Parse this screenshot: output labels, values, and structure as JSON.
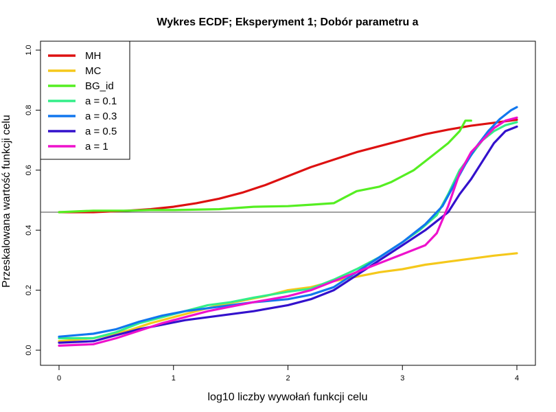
{
  "chart_data": {
    "type": "line",
    "title": "Wykres ECDF; Eksperyment 1; Dobór parametru a",
    "xlabel": "log10 liczby wywołań funkcji celu",
    "ylabel": "Przeskalowana wartość funkcji celu",
    "xlim": [
      0,
      4
    ],
    "ylim": [
      0,
      1
    ],
    "x_ticks": [
      "0",
      "1",
      "2",
      "3",
      "4"
    ],
    "y_ticks": [
      "0.0",
      "0.2",
      "0.4",
      "0.6",
      "0.8",
      "1.0"
    ],
    "hline": 0.46,
    "legend_position": "top-left",
    "grid": false,
    "series": [
      {
        "name": "MH",
        "color": "#dd1111",
        "points": [
          [
            0,
            0.46
          ],
          [
            0.3,
            0.46
          ],
          [
            0.6,
            0.465
          ],
          [
            0.8,
            0.47
          ],
          [
            1.0,
            0.478
          ],
          [
            1.2,
            0.49
          ],
          [
            1.4,
            0.505
          ],
          [
            1.6,
            0.525
          ],
          [
            1.8,
            0.55
          ],
          [
            2.0,
            0.58
          ],
          [
            2.2,
            0.61
          ],
          [
            2.4,
            0.635
          ],
          [
            2.6,
            0.66
          ],
          [
            2.8,
            0.68
          ],
          [
            3.0,
            0.7
          ],
          [
            3.2,
            0.72
          ],
          [
            3.4,
            0.735
          ],
          [
            3.6,
            0.748
          ],
          [
            3.8,
            0.758
          ],
          [
            4.0,
            0.768
          ]
        ]
      },
      {
        "name": "MC",
        "color": "#f5c81b",
        "points": [
          [
            0,
            0.03
          ],
          [
            0.3,
            0.04
          ],
          [
            0.6,
            0.065
          ],
          [
            0.8,
            0.09
          ],
          [
            1.0,
            0.11
          ],
          [
            1.2,
            0.13
          ],
          [
            1.4,
            0.15
          ],
          [
            1.6,
            0.165
          ],
          [
            1.8,
            0.18
          ],
          [
            2.0,
            0.2
          ],
          [
            2.2,
            0.21
          ],
          [
            2.4,
            0.23
          ],
          [
            2.6,
            0.245
          ],
          [
            2.8,
            0.26
          ],
          [
            3.0,
            0.27
          ],
          [
            3.2,
            0.285
          ],
          [
            3.4,
            0.295
          ],
          [
            3.6,
            0.305
          ],
          [
            3.8,
            0.315
          ],
          [
            4.0,
            0.323
          ]
        ]
      },
      {
        "name": "BG_id",
        "color": "#55ee22",
        "points": [
          [
            0,
            0.46
          ],
          [
            0.3,
            0.465
          ],
          [
            0.6,
            0.465
          ],
          [
            0.8,
            0.467
          ],
          [
            1.0,
            0.467
          ],
          [
            1.4,
            0.47
          ],
          [
            1.7,
            0.478
          ],
          [
            2.0,
            0.48
          ],
          [
            2.2,
            0.485
          ],
          [
            2.4,
            0.49
          ],
          [
            2.5,
            0.51
          ],
          [
            2.6,
            0.53
          ],
          [
            2.8,
            0.545
          ],
          [
            2.9,
            0.56
          ],
          [
            3.0,
            0.58
          ],
          [
            3.1,
            0.6
          ],
          [
            3.2,
            0.63
          ],
          [
            3.3,
            0.66
          ],
          [
            3.4,
            0.69
          ],
          [
            3.5,
            0.73
          ],
          [
            3.55,
            0.765
          ],
          [
            3.6,
            0.765
          ]
        ]
      },
      {
        "name": "a = 0.1",
        "color": "#33ee88",
        "points": [
          [
            0,
            0.04
          ],
          [
            0.3,
            0.04
          ],
          [
            0.5,
            0.06
          ],
          [
            0.7,
            0.09
          ],
          [
            0.9,
            0.11
          ],
          [
            1.1,
            0.13
          ],
          [
            1.3,
            0.15
          ],
          [
            1.5,
            0.16
          ],
          [
            1.7,
            0.175
          ],
          [
            2.0,
            0.195
          ],
          [
            2.2,
            0.205
          ],
          [
            2.4,
            0.235
          ],
          [
            2.6,
            0.27
          ],
          [
            2.8,
            0.31
          ],
          [
            3.0,
            0.36
          ],
          [
            3.15,
            0.4
          ],
          [
            3.3,
            0.45
          ],
          [
            3.4,
            0.52
          ],
          [
            3.5,
            0.6
          ],
          [
            3.6,
            0.65
          ],
          [
            3.7,
            0.7
          ],
          [
            3.8,
            0.73
          ],
          [
            3.9,
            0.75
          ],
          [
            4.0,
            0.76
          ]
        ]
      },
      {
        "name": "a = 0.3",
        "color": "#1177ee",
        "points": [
          [
            0,
            0.045
          ],
          [
            0.3,
            0.055
          ],
          [
            0.5,
            0.07
          ],
          [
            0.7,
            0.095
          ],
          [
            0.9,
            0.115
          ],
          [
            1.1,
            0.13
          ],
          [
            1.3,
            0.14
          ],
          [
            1.5,
            0.15
          ],
          [
            1.7,
            0.16
          ],
          [
            2.0,
            0.17
          ],
          [
            2.2,
            0.185
          ],
          [
            2.4,
            0.21
          ],
          [
            2.6,
            0.26
          ],
          [
            2.8,
            0.31
          ],
          [
            3.0,
            0.36
          ],
          [
            3.2,
            0.42
          ],
          [
            3.35,
            0.48
          ],
          [
            3.45,
            0.55
          ],
          [
            3.55,
            0.62
          ],
          [
            3.65,
            0.68
          ],
          [
            3.75,
            0.73
          ],
          [
            3.85,
            0.77
          ],
          [
            3.95,
            0.8
          ],
          [
            4.0,
            0.81
          ]
        ]
      },
      {
        "name": "a = 0.5",
        "color": "#3311cc",
        "points": [
          [
            0,
            0.025
          ],
          [
            0.3,
            0.03
          ],
          [
            0.5,
            0.05
          ],
          [
            0.7,
            0.07
          ],
          [
            0.9,
            0.085
          ],
          [
            1.1,
            0.1
          ],
          [
            1.3,
            0.11
          ],
          [
            1.5,
            0.12
          ],
          [
            1.7,
            0.13
          ],
          [
            2.0,
            0.15
          ],
          [
            2.2,
            0.17
          ],
          [
            2.4,
            0.2
          ],
          [
            2.6,
            0.25
          ],
          [
            2.8,
            0.3
          ],
          [
            3.0,
            0.35
          ],
          [
            3.2,
            0.4
          ],
          [
            3.4,
            0.46
          ],
          [
            3.5,
            0.52
          ],
          [
            3.6,
            0.57
          ],
          [
            3.7,
            0.63
          ],
          [
            3.8,
            0.69
          ],
          [
            3.9,
            0.73
          ],
          [
            4.0,
            0.745
          ]
        ]
      },
      {
        "name": "a = 1",
        "color": "#ee11cc",
        "points": [
          [
            0,
            0.015
          ],
          [
            0.3,
            0.02
          ],
          [
            0.5,
            0.04
          ],
          [
            0.7,
            0.065
          ],
          [
            0.9,
            0.09
          ],
          [
            1.1,
            0.11
          ],
          [
            1.3,
            0.13
          ],
          [
            1.5,
            0.145
          ],
          [
            1.7,
            0.16
          ],
          [
            2.0,
            0.18
          ],
          [
            2.2,
            0.2
          ],
          [
            2.4,
            0.23
          ],
          [
            2.6,
            0.26
          ],
          [
            2.8,
            0.29
          ],
          [
            3.0,
            0.32
          ],
          [
            3.2,
            0.35
          ],
          [
            3.3,
            0.39
          ],
          [
            3.4,
            0.48
          ],
          [
            3.5,
            0.59
          ],
          [
            3.6,
            0.66
          ],
          [
            3.7,
            0.7
          ],
          [
            3.8,
            0.74
          ],
          [
            3.9,
            0.765
          ],
          [
            4.0,
            0.775
          ]
        ]
      }
    ]
  }
}
